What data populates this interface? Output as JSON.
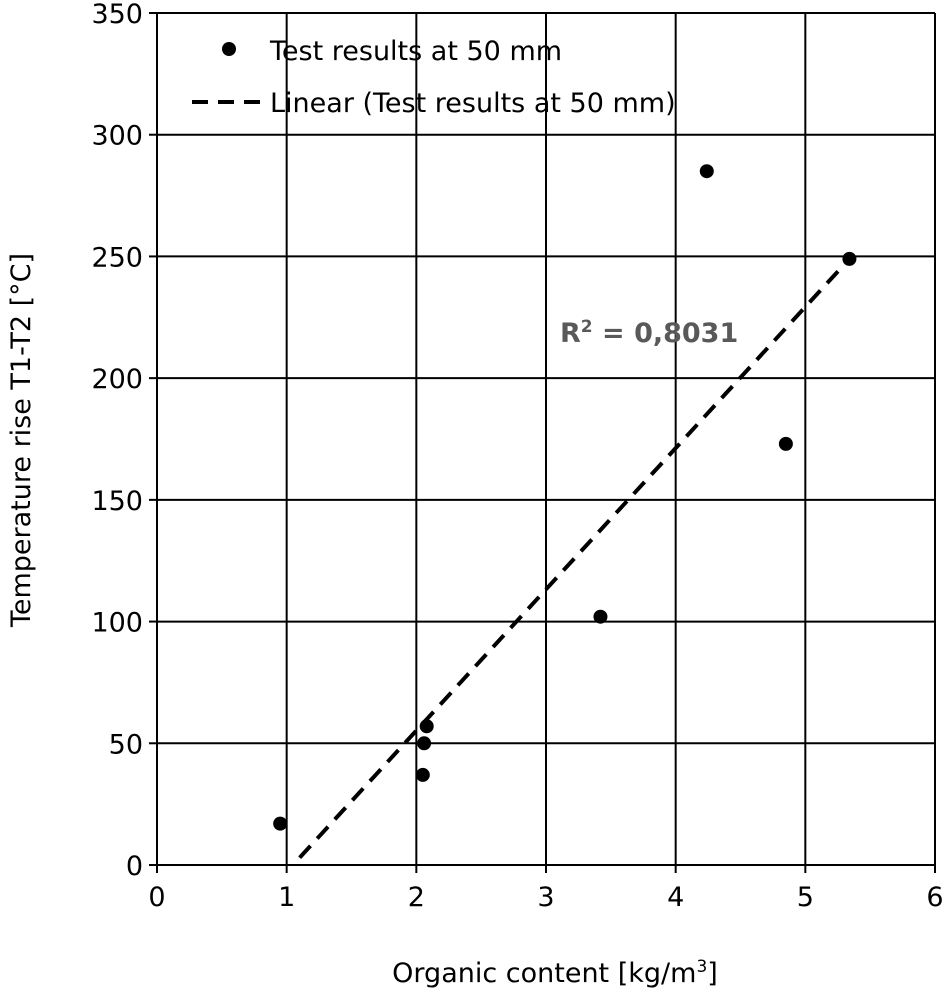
{
  "chart_data": {
    "type": "scatter",
    "title": "",
    "xlabel": "Organic content [kg/m",
    "xlabel_sup": "3",
    "xlabel_end": "]",
    "ylabel": "Temperature rise T1-T2 [°C]",
    "xlim": [
      0,
      6
    ],
    "ylim": [
      0,
      350
    ],
    "xticks": [
      "0",
      "1",
      "2",
      "3",
      "4",
      "5",
      "6"
    ],
    "yticks": [
      "0",
      "50",
      "100",
      "150",
      "200",
      "250",
      "300",
      "350"
    ],
    "grid": true,
    "legend_position": "top-left",
    "series": [
      {
        "name": "Test results at 50 mm",
        "marker": "circle",
        "color": "#000000",
        "x": [
          0.95,
          2.05,
          2.06,
          2.08,
          3.42,
          4.24,
          4.85,
          5.34
        ],
        "y": [
          17,
          37,
          50,
          57,
          102,
          285,
          173,
          249
        ]
      }
    ],
    "trendline": {
      "name": "Linear (Test results at 50 mm)",
      "style": "dashed",
      "color": "#000000",
      "x": [
        1.1,
        5.34
      ],
      "y": [
        3,
        249
      ],
      "r2_label": "R",
      "r2_sup": "2",
      "r2_value": " = 0,8031"
    }
  }
}
